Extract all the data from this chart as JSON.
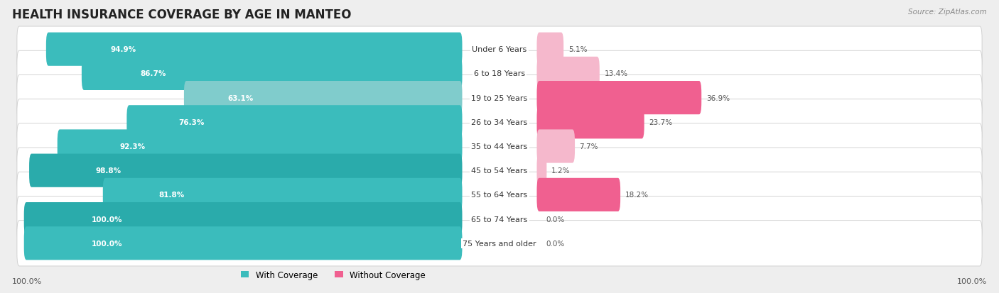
{
  "title": "HEALTH INSURANCE COVERAGE BY AGE IN MANTEO",
  "source": "Source: ZipAtlas.com",
  "categories": [
    "Under 6 Years",
    "6 to 18 Years",
    "19 to 25 Years",
    "26 to 34 Years",
    "35 to 44 Years",
    "45 to 54 Years",
    "55 to 64 Years",
    "65 to 74 Years",
    "75 Years and older"
  ],
  "with_coverage": [
    94.9,
    86.7,
    63.1,
    76.3,
    92.3,
    98.8,
    81.8,
    100.0,
    100.0
  ],
  "without_coverage": [
    5.1,
    13.4,
    36.9,
    23.7,
    7.7,
    1.2,
    18.2,
    0.0,
    0.0
  ],
  "with_colors": [
    "#3bbcbc",
    "#3bbcbc",
    "#80cccc",
    "#3bbcbc",
    "#3bbcbc",
    "#2aabab",
    "#3bbcbc",
    "#2aabab",
    "#3bbcbc"
  ],
  "without_colors": [
    "#f5b8cc",
    "#f5b8cc",
    "#f06090",
    "#f06090",
    "#f5b8cc",
    "#f5b8cc",
    "#f06090",
    "#f5b8cc",
    "#f5b8cc"
  ],
  "bg_color": "#eeeeee",
  "row_bg": "#ffffff",
  "title_fontsize": 12,
  "bar_height": 0.38,
  "footer_value": "100.0%",
  "legend_with_color": "#3bbcbc",
  "legend_without_color": "#f06090"
}
